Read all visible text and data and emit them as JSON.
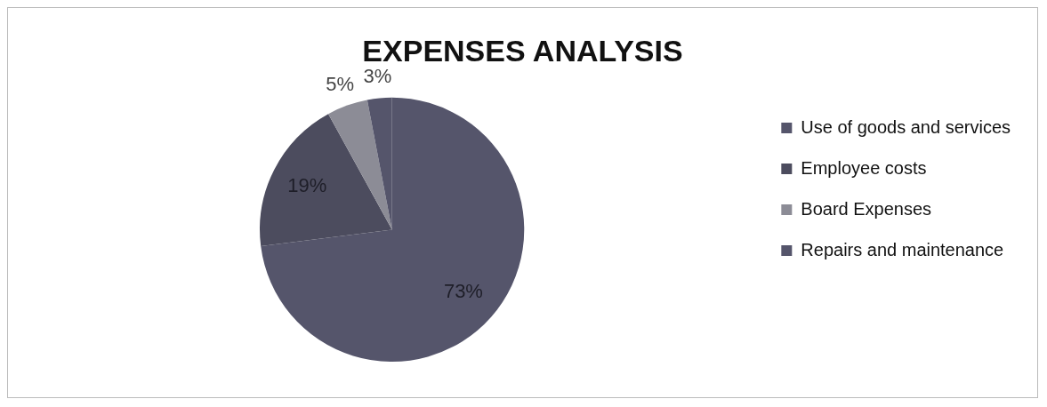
{
  "chart_data": {
    "type": "pie",
    "title": "EXPENSES ANALYSIS",
    "categories": [
      "Use of goods and services",
      "Employee costs",
      "Board Expenses",
      "Repairs and maintenance"
    ],
    "values": [
      73,
      19,
      5,
      3
    ],
    "colors": [
      "#55556b",
      "#4c4c5e",
      "#8c8c96",
      "#55556b"
    ],
    "value_labels": [
      "73%",
      "19%",
      "5%",
      "3%"
    ],
    "legend": "right"
  }
}
